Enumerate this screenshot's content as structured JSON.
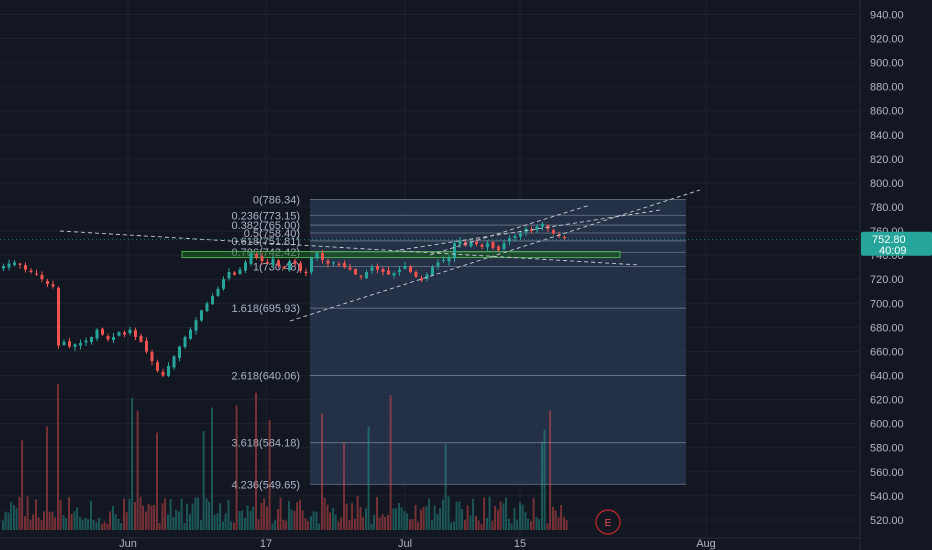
{
  "chart_data": {
    "type": "candlestick",
    "y_axis": {
      "range": [
        505,
        952
      ],
      "ticks": [
        520,
        540,
        560,
        580,
        600,
        620,
        640,
        660,
        680,
        700,
        720,
        740,
        760,
        780,
        800,
        820,
        840,
        860,
        880,
        900,
        920,
        940
      ],
      "tick_labels": [
        "520.00",
        "540.00",
        "560.00",
        "580.00",
        "600.00",
        "620.00",
        "640.00",
        "660.00",
        "680.00",
        "700.00",
        "720.00",
        "740.00",
        "760.00",
        "780.00",
        "800.00",
        "820.00",
        "840.00",
        "860.00",
        "880.00",
        "900.00",
        "920.00",
        "940.00"
      ]
    },
    "x_axis": {
      "labels": [
        "Jun",
        "17",
        "Jul",
        "15",
        "Aug"
      ]
    },
    "current_price": {
      "value": 752.8,
      "label": "752.80",
      "countdown": "40:09",
      "color": "#26a69a"
    },
    "colors": {
      "up": "#26a69a",
      "down": "#ef5350",
      "background": "#131722",
      "grid": "#1f2433",
      "fib_box": "#2a3a52"
    },
    "fibonacci": {
      "levels": [
        {
          "ratio": "0",
          "price": 786.34,
          "label": "0(786.34)"
        },
        {
          "ratio": "0.236",
          "price": 773.15,
          "label": "0.236(773.15)"
        },
        {
          "ratio": "0.382",
          "price": 765.0,
          "label": "0.382(765.00)"
        },
        {
          "ratio": "0.5",
          "price": 758.4,
          "label": "0.5(758.40)"
        },
        {
          "ratio": "0.618",
          "price": 751.81,
          "label": "0.618(751.81)"
        },
        {
          "ratio": "0.786",
          "price": 742.42,
          "label": "0.786(742.42)"
        },
        {
          "ratio": "1",
          "price": 730.48,
          "label": "1(730.48)"
        },
        {
          "ratio": "1.618",
          "price": 695.93,
          "label": "1.618(695.93)"
        },
        {
          "ratio": "2.618",
          "price": 640.06,
          "label": "2.618(640.06)"
        },
        {
          "ratio": "3.618",
          "price": 584.18,
          "label": "3.618(584.18)"
        },
        {
          "ratio": "4.236",
          "price": 549.65,
          "label": "4.236(549.65)"
        }
      ]
    },
    "support_zone": {
      "low": 738,
      "high": 743
    },
    "closes": [
      731,
      733,
      734,
      732,
      728,
      726,
      724,
      720,
      716,
      714,
      665,
      668,
      664,
      666,
      667,
      669,
      672,
      678,
      674,
      670,
      672,
      676,
      674,
      678,
      672,
      668,
      660,
      652,
      644,
      640,
      648,
      656,
      664,
      672,
      678,
      686,
      694,
      700,
      706,
      712,
      720,
      726,
      724,
      728,
      734,
      742,
      738,
      735,
      733,
      737,
      731,
      729,
      735,
      733,
      727,
      725,
      738,
      742,
      736,
      733,
      734,
      732,
      730,
      728,
      724,
      722,
      726,
      730,
      728,
      726,
      724,
      725,
      728,
      731,
      726,
      722,
      719,
      724,
      730,
      734,
      736,
      738,
      750,
      752,
      748,
      751,
      749,
      747,
      750,
      746,
      744,
      750,
      754,
      756,
      758,
      762,
      760,
      764,
      766,
      762,
      758,
      756,
      754
    ]
  },
  "marker": {
    "label": "E"
  }
}
